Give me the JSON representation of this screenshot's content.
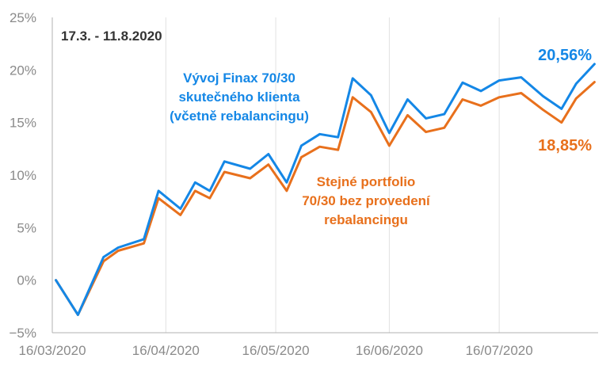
{
  "chart_data": {
    "type": "line",
    "title": "",
    "xlabel": "",
    "ylabel": "",
    "ylim": [
      -5,
      25
    ],
    "yticks": [
      -5,
      0,
      5,
      10,
      15,
      20,
      25
    ],
    "ytick_labels": [
      "−5%",
      "0%",
      "5%",
      "10%",
      "15%",
      "20%",
      "25%"
    ],
    "x_ticks": [
      {
        "date": "2020-03-16",
        "label": "16/03/2020"
      },
      {
        "date": "2020-04-16",
        "label": "16/04/2020"
      },
      {
        "date": "2020-05-16",
        "label": "16/05/2020"
      },
      {
        "date": "2020-06-16",
        "label": "16/06/2020"
      },
      {
        "date": "2020-07-16",
        "label": "16/07/2020"
      }
    ],
    "xlim": [
      "2020-03-16",
      "2020-08-12"
    ],
    "grid": "vertical",
    "x": [
      "2020-03-17",
      "2020-03-23",
      "2020-03-30",
      "2020-04-03",
      "2020-04-10",
      "2020-04-14",
      "2020-04-20",
      "2020-04-24",
      "2020-04-28",
      "2020-05-02",
      "2020-05-09",
      "2020-05-14",
      "2020-05-19",
      "2020-05-23",
      "2020-05-28",
      "2020-06-02",
      "2020-06-06",
      "2020-06-11",
      "2020-06-16",
      "2020-06-21",
      "2020-06-26",
      "2020-07-01",
      "2020-07-06",
      "2020-07-11",
      "2020-07-16",
      "2020-07-22",
      "2020-07-28",
      "2020-08-02",
      "2020-08-06",
      "2020-08-11"
    ],
    "series": [
      {
        "name": "Vývoj Finax 70/30 skutečného klienta (včetně rebalancingu)",
        "color": "#1487e6",
        "values": [
          0.0,
          -3.3,
          2.2,
          3.1,
          3.9,
          8.5,
          6.8,
          9.3,
          8.5,
          11.3,
          10.6,
          12.0,
          9.3,
          12.8,
          13.9,
          13.6,
          19.2,
          17.6,
          14.0,
          17.2,
          15.4,
          15.8,
          18.8,
          18.0,
          19.0,
          19.3,
          17.5,
          16.3,
          18.7,
          20.56
        ]
      },
      {
        "name": "Stejné portfolio 70/30 bez provedení rebalancingu",
        "color": "#e8701c",
        "values": [
          0.0,
          -3.3,
          1.8,
          2.8,
          3.5,
          7.8,
          6.2,
          8.5,
          7.8,
          10.3,
          9.7,
          11.0,
          8.5,
          11.7,
          12.7,
          12.4,
          17.4,
          16.0,
          12.8,
          15.7,
          14.1,
          14.5,
          17.2,
          16.6,
          17.4,
          17.8,
          16.2,
          15.0,
          17.3,
          18.85
        ]
      }
    ],
    "annotations": {
      "period": "17.3. - 11.8.2020",
      "blue_label": [
        "Vývoj Finax 70/30",
        "skutečného klienta",
        "(včetně rebalancingu)"
      ],
      "orange_label": [
        "Stejné portfolio",
        "70/30 bez provedení",
        "rebalancingu"
      ],
      "blue_end": "20,56%",
      "orange_end": "18,85%"
    }
  }
}
